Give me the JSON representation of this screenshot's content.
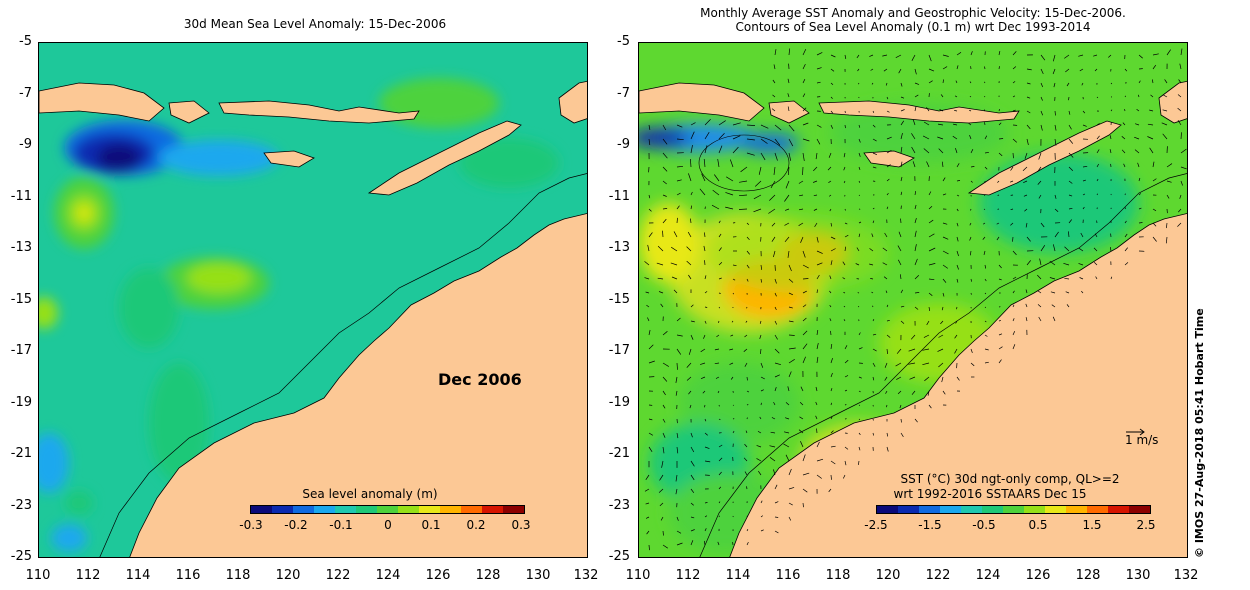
{
  "left_panel": {
    "title": "30d Mean Sea Level Anomaly: 15-Dec-2006",
    "date_label": "Dec 2006",
    "colorbar": {
      "title": "Sea level anomaly (m)",
      "ticks": [
        "-0.3",
        "-0.2",
        "-0.1",
        "0",
        "0.1",
        "0.2",
        "0.3"
      ],
      "colors": [
        "#0a0a7a",
        "#0a2ab0",
        "#0f6ae0",
        "#1aa8ee",
        "#1ec8b0",
        "#1ec878",
        "#4ed23c",
        "#96e018",
        "#e8e818",
        "#ffb400",
        "#ff6a00",
        "#d61400",
        "#8c0000"
      ]
    }
  },
  "right_panel": {
    "title_line1": "Monthly Average SST Anomaly  and Geostrophic Velocity: 15-Dec-2006.",
    "title_line2": "Contours of Sea Level Anomaly (0.1 m) wrt Dec 1993-2014",
    "vector_scale_label": "1 m/s",
    "colorbar": {
      "title_line1": "SST (°C) 30d ngt-only comp, QL>=2",
      "title_line2": "wrt 1992-2016 SSTAARS Dec 15",
      "ticks": [
        "-2.5",
        "-1.5",
        "-0.5",
        "0.5",
        "1.5",
        "2.5"
      ],
      "colors": [
        "#0a0a7a",
        "#0a2ab0",
        "#0f6ae0",
        "#1aa8ee",
        "#1ec8b0",
        "#1ec878",
        "#4ed23c",
        "#96e018",
        "#e8e818",
        "#ffb400",
        "#ff6a00",
        "#d61400",
        "#8c0000"
      ]
    }
  },
  "axes": {
    "lat_ticks": [
      "-5",
      "-7",
      "-9",
      "-11",
      "-13",
      "-15",
      "-17",
      "-19",
      "-21",
      "-23",
      "-25"
    ],
    "lon_ticks": [
      "110",
      "112",
      "114",
      "116",
      "118",
      "120",
      "122",
      "124",
      "126",
      "128",
      "130",
      "132"
    ]
  },
  "side_label": "© IMOS 27-Aug-2018 05:41 Hobart Time",
  "colors": {
    "land": "#fcc895",
    "ocean_sla": "#1ec89a",
    "ocean_sst": "#5ed830"
  }
}
